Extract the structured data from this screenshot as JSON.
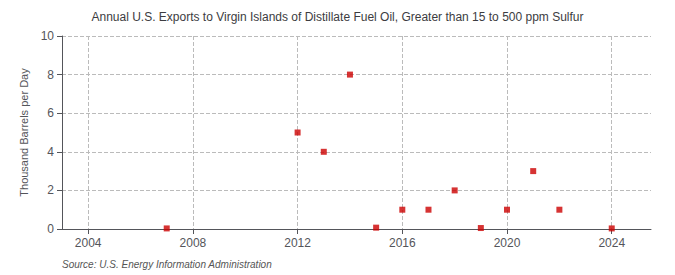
{
  "chart_data": {
    "type": "scatter",
    "title": "Annual U.S. Exports to Virgin Islands of Distillate Fuel Oil, Greater than 15 to 500 ppm Sulfur",
    "ylabel": "Thousand Barrels per Day",
    "source": "Source: U.S. Energy Information Administration",
    "x": [
      2007,
      2012,
      2013,
      2014,
      2015,
      2016,
      2017,
      2018,
      2019,
      2020,
      2021,
      2022,
      2024
    ],
    "values": [
      0.03,
      5.0,
      4.0,
      8.0,
      0.07,
      1.0,
      1.0,
      2.0,
      0.05,
      1.0,
      3.0,
      1.0,
      0.03
    ],
    "color": "#cc0000",
    "marker": "square",
    "xlim": [
      2003.0,
      2025.5
    ],
    "xticks": [
      2004,
      2008,
      2012,
      2016,
      2020,
      2024
    ],
    "ylim": [
      0,
      10
    ],
    "yticks": [
      0,
      2,
      4,
      6,
      8,
      10
    ],
    "grid": true
  }
}
